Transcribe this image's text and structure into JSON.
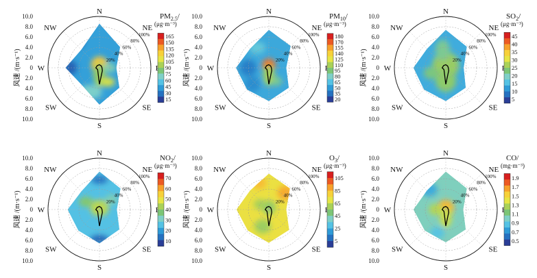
{
  "chart_data": [
    {
      "type": "polar-contour",
      "pollutant": "PM2.5",
      "name_main": "PM",
      "name_sub": "2.5",
      "unit": "(μg·m⁻³)",
      "ylabel": "风速 /(m·s⁻¹)",
      "yticks": [
        "10.0",
        "8.0",
        "6.0",
        "4.0",
        "2.0",
        "0",
        "2.0",
        "4.0",
        "6.0",
        "8.0",
        "10.0"
      ],
      "directions": [
        "N",
        "NE",
        "E",
        "SE",
        "S",
        "SW",
        "W",
        "NW"
      ],
      "rings": [
        "20%",
        "40%",
        "60%",
        "80%",
        "100%"
      ],
      "colorbar_ticks": [
        "165",
        "150",
        "135",
        "120",
        "105",
        "90",
        "75",
        "60",
        "45",
        "30",
        "15"
      ],
      "domain": [
        15,
        170
      ],
      "hull": [
        [
          0,
          8.6
        ],
        [
          45,
          5.7
        ],
        [
          90,
          3.3
        ],
        [
          135,
          5.5
        ],
        [
          180,
          7.2
        ],
        [
          225,
          4.8
        ],
        [
          270,
          6.6
        ],
        [
          315,
          5.0
        ]
      ],
      "blobs": [
        {
          "angle": 0,
          "speed": 0.6,
          "rx": 1.6,
          "ry": 1.6,
          "value": 130
        },
        {
          "angle": 180,
          "speed": 1.4,
          "rx": 1.2,
          "ry": 2.4,
          "value": 95
        },
        {
          "angle": 150,
          "speed": 3.2,
          "rx": 1.4,
          "ry": 0.9,
          "value": 110
        },
        {
          "angle": 200,
          "speed": 5.0,
          "rx": 2.2,
          "ry": 1.4,
          "value": 70
        },
        {
          "angle": 320,
          "speed": 6.8,
          "rx": 1.3,
          "ry": 1.3,
          "value": 20
        },
        {
          "angle": 270,
          "speed": 5.6,
          "rx": 1.2,
          "ry": 1.4,
          "value": 25
        },
        {
          "angle": 90,
          "speed": 2.0,
          "rx": 1.2,
          "ry": 1.0,
          "value": 75
        }
      ],
      "base_value": 45,
      "rose": [
        0.06,
        0.05,
        0.05,
        0.08,
        0.32,
        0.05,
        0.07,
        0.06
      ]
    },
    {
      "type": "polar-contour",
      "pollutant": "PM10",
      "name_main": "PM",
      "name_sub": "10",
      "unit": "(μg·m⁻³)",
      "ylabel": "风速 /(m·s⁻¹)",
      "yticks": [
        "10.0",
        "8.0",
        "6.0",
        "4.0",
        "2.0",
        "0",
        "2.0",
        "4.0",
        "6.0",
        "8.0",
        "10.0"
      ],
      "directions": [
        "N",
        "NE",
        "E",
        "SE",
        "S",
        "SW",
        "W",
        "NW"
      ],
      "rings": [
        "20%",
        "40%",
        "60%",
        "80%",
        "100%"
      ],
      "colorbar_ticks": [
        "180",
        "170",
        "155",
        "140",
        "125",
        "110",
        "95",
        "80",
        "65",
        "50",
        "35",
        "20"
      ],
      "domain": [
        20,
        185
      ],
      "hull": [
        [
          0,
          7.4
        ],
        [
          45,
          6.0
        ],
        [
          90,
          3.4
        ],
        [
          135,
          5.5
        ],
        [
          180,
          6.5
        ],
        [
          225,
          6.0
        ],
        [
          270,
          6.4
        ],
        [
          315,
          5.2
        ]
      ],
      "blobs": [
        {
          "angle": 0,
          "speed": 0.5,
          "rx": 1.3,
          "ry": 1.3,
          "value": 165
        },
        {
          "angle": 180,
          "speed": 1.5,
          "rx": 1.1,
          "ry": 2.0,
          "value": 110
        },
        {
          "angle": 330,
          "speed": 4.5,
          "rx": 1.6,
          "ry": 1.2,
          "value": 70
        },
        {
          "angle": 270,
          "speed": 4.0,
          "rx": 1.6,
          "ry": 1.6,
          "value": 40
        },
        {
          "angle": 225,
          "speed": 4.5,
          "rx": 1.5,
          "ry": 1.5,
          "value": 45
        },
        {
          "angle": 150,
          "speed": 3.0,
          "rx": 1.0,
          "ry": 0.9,
          "value": 90
        }
      ],
      "base_value": 55,
      "rose": [
        0.06,
        0.05,
        0.05,
        0.08,
        0.32,
        0.05,
        0.07,
        0.06
      ]
    },
    {
      "type": "polar-contour",
      "pollutant": "SO2",
      "name_main": "SO",
      "name_sub": "2",
      "unit": "(μg·m⁻³)",
      "ylabel": "风速 /(m·s⁻¹)",
      "yticks": [
        "10.0",
        "8.0",
        "6.0",
        "4.0",
        "2.0",
        "0",
        "2.0",
        "4.0",
        "6.0",
        "8.0",
        "10.0"
      ],
      "directions": [
        "N",
        "NE",
        "E",
        "SE",
        "S",
        "SW",
        "W",
        "NW"
      ],
      "rings": [
        "20%",
        "40%",
        "60%",
        "80%",
        "100%"
      ],
      "colorbar_ticks": [
        "45",
        "40",
        "35",
        "30",
        "25",
        "20",
        "15",
        "10",
        "5"
      ],
      "domain": [
        3,
        48
      ],
      "hull": [
        [
          0,
          7.4
        ],
        [
          45,
          5.8
        ],
        [
          90,
          3.5
        ],
        [
          135,
          5.5
        ],
        [
          180,
          6.5
        ],
        [
          225,
          6.0
        ],
        [
          270,
          6.3
        ],
        [
          315,
          5.2
        ]
      ],
      "blobs": [
        {
          "angle": 0,
          "speed": 0.5,
          "rx": 2.6,
          "ry": 2.6,
          "value": 26
        },
        {
          "angle": 180,
          "speed": 2.5,
          "rx": 2.0,
          "ry": 2.2,
          "value": 25
        },
        {
          "angle": 350,
          "speed": 3.5,
          "rx": 1.4,
          "ry": 2.0,
          "value": 22
        },
        {
          "angle": 250,
          "speed": 3.0,
          "rx": 1.5,
          "ry": 1.2,
          "value": 23
        }
      ],
      "base_value": 13,
      "rose": [
        0.06,
        0.05,
        0.05,
        0.08,
        0.32,
        0.05,
        0.07,
        0.06
      ]
    },
    {
      "type": "polar-contour",
      "pollutant": "NO2",
      "name_main": "NO",
      "name_sub": "2",
      "unit": "(μg·m⁻³)",
      "ylabel": "风速 /(m·s⁻¹)",
      "yticks": [
        "10.0",
        "8.0",
        "6.0",
        "4.0",
        "2.0",
        "0",
        "2.0",
        "4.0",
        "6.0",
        "8.0",
        "10.0"
      ],
      "directions": [
        "N",
        "NE",
        "E",
        "SE",
        "S",
        "SW",
        "W",
        "NW"
      ],
      "rings": [
        "20%",
        "40%",
        "60%",
        "80%",
        "100%"
      ],
      "colorbar_ticks": [
        "70",
        "60",
        "50",
        "40",
        "30",
        "20",
        "10"
      ],
      "domain": [
        5,
        75
      ],
      "hull": [
        [
          0,
          7.4
        ],
        [
          45,
          5.8
        ],
        [
          90,
          3.4
        ],
        [
          135,
          5.5
        ],
        [
          180,
          6.6
        ],
        [
          225,
          5.8
        ],
        [
          270,
          6.2
        ],
        [
          315,
          5.0
        ]
      ],
      "blobs": [
        {
          "angle": 0,
          "speed": 0.3,
          "rx": 1.8,
          "ry": 1.6,
          "value": 45
        },
        {
          "angle": 300,
          "speed": 3.0,
          "rx": 1.4,
          "ry": 1.0,
          "value": 38
        },
        {
          "angle": 180,
          "speed": 5.8,
          "rx": 1.8,
          "ry": 0.8,
          "value": 10
        },
        {
          "angle": 0,
          "speed": 5.8,
          "rx": 1.6,
          "ry": 0.8,
          "value": 12
        },
        {
          "angle": 50,
          "speed": 3.0,
          "rx": 1.2,
          "ry": 1.0,
          "value": 32
        }
      ],
      "base_value": 24,
      "rose": [
        0.06,
        0.05,
        0.05,
        0.08,
        0.32,
        0.05,
        0.07,
        0.06
      ]
    },
    {
      "type": "polar-contour",
      "pollutant": "O3",
      "name_main": "O",
      "name_sub": "3",
      "unit": "(μg·m⁻³)",
      "ylabel": "风速 /(m·s⁻¹)",
      "yticks": [
        "10.0",
        "8.0",
        "6.0",
        "4.0",
        "2.0",
        "0",
        "2.0",
        "4.0",
        "6.0",
        "8.0",
        "10.0"
      ],
      "directions": [
        "N",
        "NE",
        "E",
        "SE",
        "S",
        "SW",
        "W",
        "NW"
      ],
      "rings": [
        "20%",
        "40%",
        "60%",
        "80%",
        "100%"
      ],
      "colorbar_ticks": [
        "105",
        "85",
        "65",
        "45",
        "25",
        "5"
      ],
      "domain": [
        0,
        115
      ],
      "hull": [
        [
          0,
          7.0
        ],
        [
          45,
          5.8
        ],
        [
          90,
          3.4
        ],
        [
          135,
          5.6
        ],
        [
          180,
          6.5
        ],
        [
          225,
          5.8
        ],
        [
          270,
          6.3
        ],
        [
          315,
          5.2
        ]
      ],
      "blobs": [
        {
          "angle": 0,
          "speed": 0.4,
          "rx": 1.4,
          "ry": 1.4,
          "value": 58
        },
        {
          "angle": 45,
          "speed": 4.6,
          "rx": 1.6,
          "ry": 1.4,
          "value": 92
        },
        {
          "angle": 340,
          "speed": 5.5,
          "rx": 1.4,
          "ry": 1.2,
          "value": 88
        },
        {
          "angle": 200,
          "speed": 3.5,
          "rx": 1.6,
          "ry": 1.4,
          "value": 60
        },
        {
          "angle": 300,
          "speed": 2.0,
          "rx": 1.2,
          "ry": 1.0,
          "value": 62
        }
      ],
      "base_value": 76,
      "rose": [
        0.06,
        0.05,
        0.05,
        0.08,
        0.32,
        0.05,
        0.07,
        0.06
      ]
    },
    {
      "type": "polar-contour",
      "pollutant": "CO",
      "name_main": "CO",
      "name_sub": "",
      "unit": "(mg·m⁻³)",
      "ylabel": "风速 /(m·s⁻¹)",
      "yticks": [
        "10.0",
        "8.0",
        "6.0",
        "4.0",
        "2.0",
        "0",
        "2.0",
        "4.0",
        "6.0",
        "8.0",
        "10.0"
      ],
      "directions": [
        "N",
        "NE",
        "E",
        "SE",
        "S",
        "SW",
        "W",
        "NW"
      ],
      "rings": [
        "20%",
        "40%",
        "60%",
        "80%",
        "100%"
      ],
      "colorbar_ticks": [
        "1.9",
        "1.7",
        "1.5",
        "1.3",
        "1.1",
        "0.9",
        "0.7",
        "0.5"
      ],
      "domain": [
        0.4,
        2.0
      ],
      "hull": [
        [
          0,
          7.4
        ],
        [
          45,
          5.8
        ],
        [
          90,
          3.4
        ],
        [
          135,
          5.5
        ],
        [
          180,
          6.4
        ],
        [
          225,
          5.8
        ],
        [
          270,
          6.3
        ],
        [
          315,
          5.2
        ]
      ],
      "blobs": [
        {
          "angle": 0,
          "speed": 0.3,
          "rx": 1.6,
          "ry": 1.6,
          "value": 1.65
        },
        {
          "angle": 180,
          "speed": 1.5,
          "rx": 1.2,
          "ry": 2.0,
          "value": 1.35
        },
        {
          "angle": 270,
          "speed": 2.0,
          "rx": 1.3,
          "ry": 1.1,
          "value": 1.3
        },
        {
          "angle": 320,
          "speed": 5.0,
          "rx": 1.6,
          "ry": 1.3,
          "value": 0.75
        },
        {
          "angle": 200,
          "speed": 4.8,
          "rx": 1.4,
          "ry": 1.2,
          "value": 0.85
        }
      ],
      "base_value": 1.0,
      "rose": [
        0.06,
        0.05,
        0.05,
        0.08,
        0.32,
        0.05,
        0.07,
        0.06
      ]
    }
  ]
}
